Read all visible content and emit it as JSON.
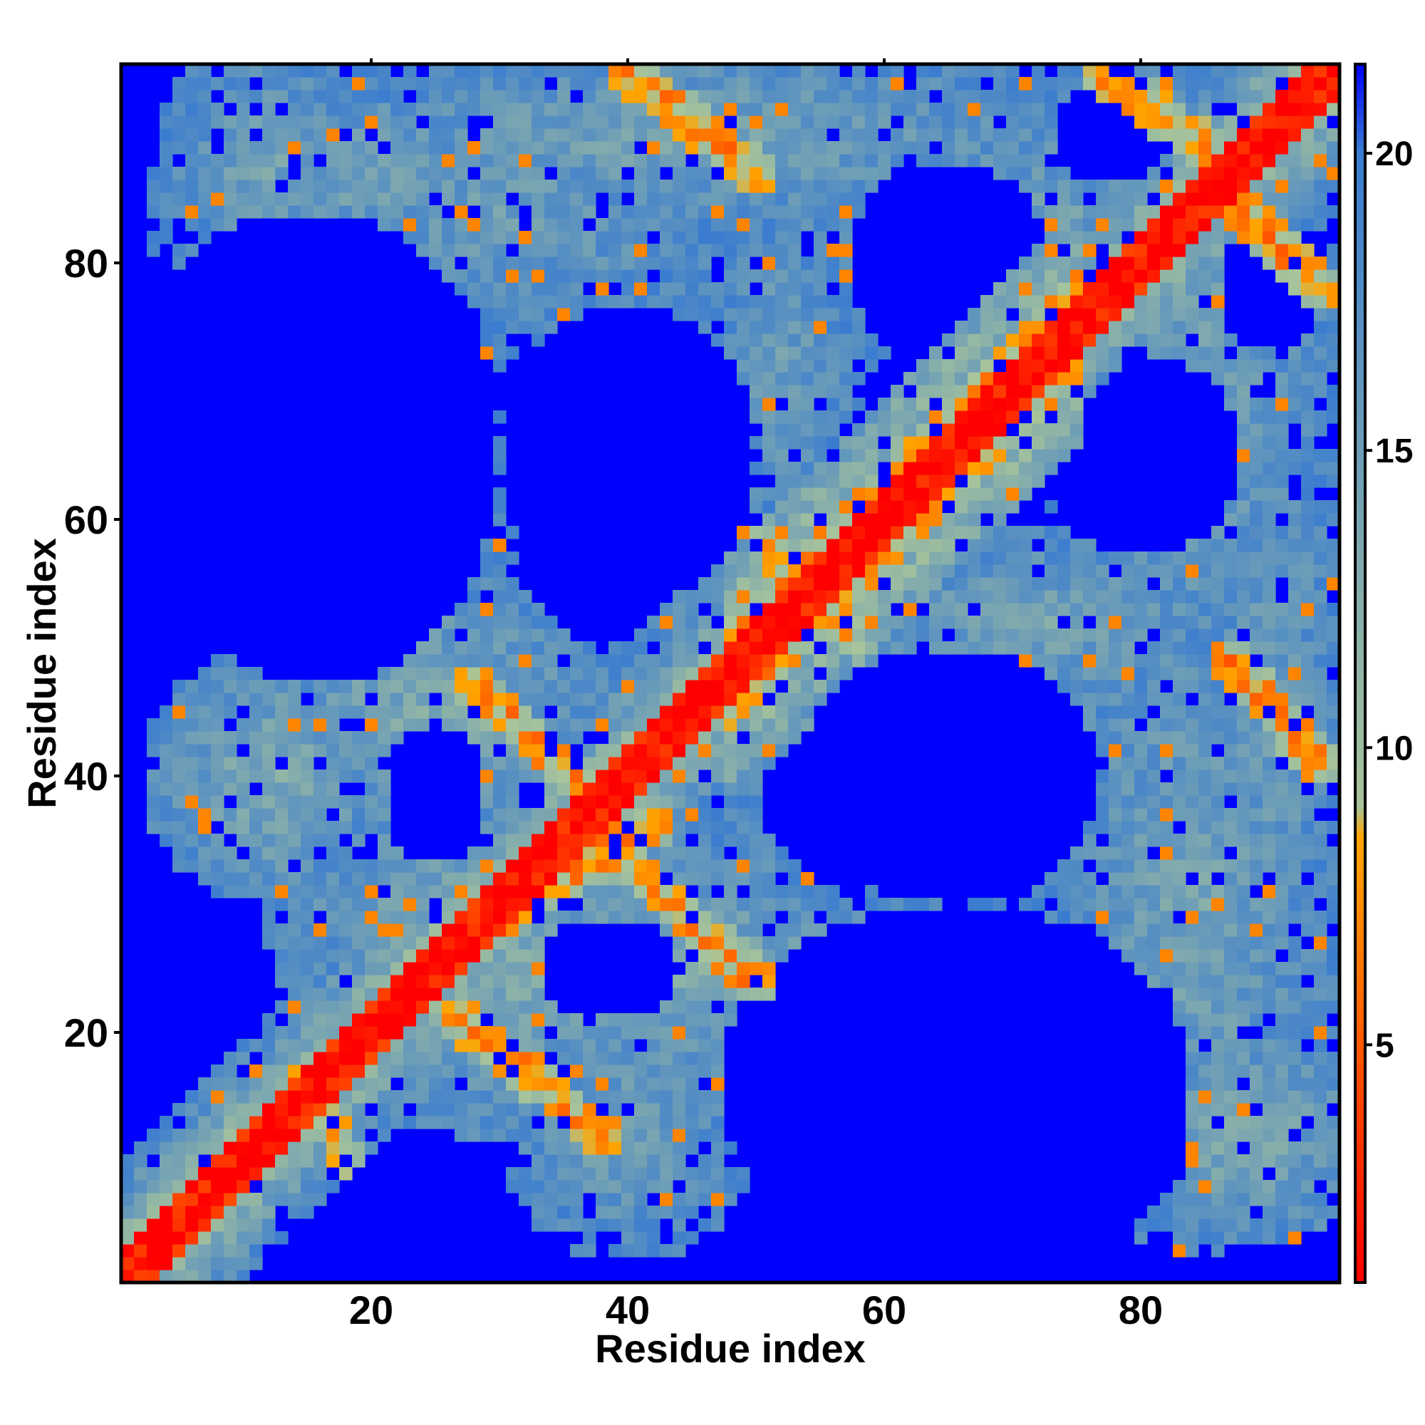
{
  "chart_data": {
    "type": "heatmap",
    "title": "",
    "xlabel": "Residue index",
    "ylabel": "Residue index",
    "n_residues": 95,
    "xlim": [
      1,
      95
    ],
    "ylim": [
      1,
      95
    ],
    "x_ticks": [
      "20",
      "40",
      "60",
      "80"
    ],
    "y_ticks": [
      "20",
      "40",
      "60",
      "80"
    ],
    "colorbar": {
      "ticks": [
        "5",
        "10",
        "15",
        "20"
      ],
      "range": [
        1,
        21.5
      ],
      "cutoff": 20,
      "stops": [
        {
          "value": 1,
          "color": "#ff0000"
        },
        {
          "value": 8.5,
          "color": "#ffa500"
        },
        {
          "value": 9,
          "color": "#a8c49a"
        },
        {
          "value": 20,
          "color": "#3a7cd0"
        },
        {
          "value": 21.5,
          "color": "#0000ff"
        }
      ]
    },
    "background_color": "#0000ff",
    "structure": {
      "diagonal_bands": [
        {
          "start": 1,
          "end": 95,
          "offset": 0,
          "width": 3.2,
          "value": 2
        },
        {
          "start": 48,
          "end": 75,
          "offset": 3,
          "width": 2.0,
          "value": 8
        },
        {
          "start": 48,
          "end": 75,
          "offset": 6,
          "width": 3.5,
          "value": 12
        }
      ],
      "contact_ridges": [
        {
          "from": [
            27,
            21
          ],
          "to": [
            38,
            12
          ],
          "value": 7,
          "width": 1.6
        },
        {
          "from": [
            26,
            27
          ],
          "to": [
            42,
            36
          ],
          "value": 7,
          "width": 1.6
        },
        {
          "from": [
            37,
            36
          ],
          "to": [
            50,
            24
          ],
          "value": 7,
          "width": 1.6
        },
        {
          "from": [
            28,
            47
          ],
          "to": [
            38,
            38
          ],
          "value": 7,
          "width": 1.6
        },
        {
          "from": [
            40,
            95
          ],
          "to": [
            50,
            87
          ],
          "value": 7,
          "width": 1.6
        },
        {
          "from": [
            77,
            95
          ],
          "to": [
            85,
            89
          ],
          "value": 7,
          "width": 1.6
        },
        {
          "from": [
            86,
            86
          ],
          "to": [
            94,
            78
          ],
          "value": 7,
          "width": 1.6
        },
        {
          "from": [
            87,
            49
          ],
          "to": [
            94,
            41
          ],
          "value": 7,
          "width": 1.6
        },
        {
          "from": [
            15,
            17
          ],
          "to": [
            18,
            10
          ],
          "value": 8,
          "width": 1.4
        },
        {
          "from": [
            50,
            59
          ],
          "to": [
            58,
            50
          ],
          "value": 8,
          "width": 1.4
        }
      ],
      "contact_regions": [
        {
          "center": [
            30,
            25
          ],
          "radius": [
            14,
            14
          ],
          "value": 13
        },
        {
          "center": [
            12,
            40
          ],
          "radius": [
            10,
            10
          ],
          "value": 13
        },
        {
          "center": [
            25,
            45
          ],
          "radius": [
            14,
            10
          ],
          "value": 13
        },
        {
          "center": [
            45,
            25
          ],
          "radius": [
            14,
            10
          ],
          "value": 13
        },
        {
          "center": [
            45,
            90
          ],
          "radius": [
            36,
            8
          ],
          "value": 14
        },
        {
          "center": [
            20,
            87
          ],
          "radius": [
            12,
            8
          ],
          "value": 14
        },
        {
          "center": [
            84,
            30
          ],
          "radius": [
            13,
            28
          ],
          "value": 14
        },
        {
          "center": [
            84,
            70
          ],
          "radius": [
            12,
            28
          ],
          "value": 14
        },
        {
          "center": [
            60,
            44
          ],
          "radius": [
            24,
            7
          ],
          "value": 14
        },
        {
          "center": [
            45,
            62
          ],
          "radius": [
            7,
            16
          ],
          "value": 15
        },
        {
          "center": [
            62,
            27
          ],
          "radius": [
            12,
            5
          ],
          "value": 15
        },
        {
          "center": [
            88,
            12
          ],
          "radius": [
            10,
            9
          ],
          "value": 13
        },
        {
          "center": [
            72,
            52
          ],
          "radius": [
            18,
            8
          ],
          "value": 14
        }
      ],
      "void_regions": [
        {
          "center": [
            16,
            65
          ],
          "radius": [
            14,
            18
          ]
        },
        {
          "center": [
            40,
            65
          ],
          "radius": [
            10,
            12
          ]
        },
        {
          "center": [
            65,
            80
          ],
          "radius": [
            8,
            8
          ]
        },
        {
          "center": [
            78,
            90
          ],
          "radius": [
            5,
            4
          ]
        },
        {
          "center": [
            70,
            15
          ],
          "radius": [
            14,
            14
          ]
        },
        {
          "center": [
            25,
            40
          ],
          "radius": [
            4,
            4
          ]
        },
        {
          "center": [
            37,
            25
          ],
          "radius": [
            4,
            4
          ]
        },
        {
          "center": [
            60,
            38
          ],
          "radius": [
            10,
            6
          ]
        }
      ],
      "outer_void_distance": 48
    }
  }
}
